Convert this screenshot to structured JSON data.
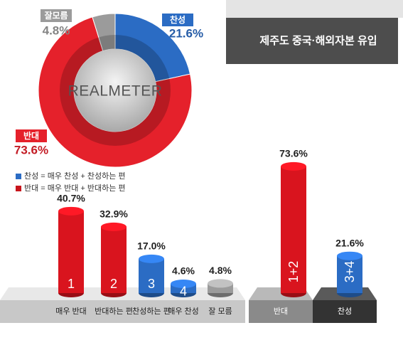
{
  "title": "제주도 중국·해외자본 유입",
  "chart_data": [
    {
      "type": "donut",
      "categories": [
        "찬성",
        "반대",
        "잘모름"
      ],
      "values": [
        21.6,
        73.6,
        4.8
      ],
      "value_labels": [
        "21.6%",
        "73.6%",
        "4.8%"
      ],
      "colors": [
        "#2b6cc4",
        "#e5212b",
        "#9b9b9b"
      ],
      "center_label": "REALMETER",
      "legend": [
        {
          "text": "찬성 = 매우 찬성 + 찬성하는 편",
          "color": "#2b6cc4"
        },
        {
          "text": "반대 = 매우 반대 + 반대하는 편",
          "color": "#c8141c"
        }
      ]
    },
    {
      "type": "cylinder-bar",
      "categories": [
        "매우 반대",
        "반대하는 편",
        "찬성하는 편",
        "매우 찬성",
        "잘 모름"
      ],
      "values": [
        40.7,
        32.9,
        17.0,
        4.6,
        4.8
      ],
      "value_labels": [
        "40.7%",
        "32.9%",
        "17.0%",
        "4.6%",
        "4.8%"
      ],
      "bar_labels": [
        "1",
        "2",
        "3",
        "4",
        null
      ],
      "colors": [
        "#d9141e",
        "#d9141e",
        "#2b6cc4",
        "#2b6cc4",
        "#9b9b9b"
      ]
    },
    {
      "type": "cylinder-bar",
      "categories": [
        "반대",
        "찬성"
      ],
      "values": [
        73.6,
        21.6
      ],
      "value_labels": [
        "73.6%",
        "21.6%"
      ],
      "bar_labels": [
        "1+2",
        "3+4"
      ],
      "colors": [
        "#d9141e",
        "#2b6cc4"
      ]
    }
  ]
}
